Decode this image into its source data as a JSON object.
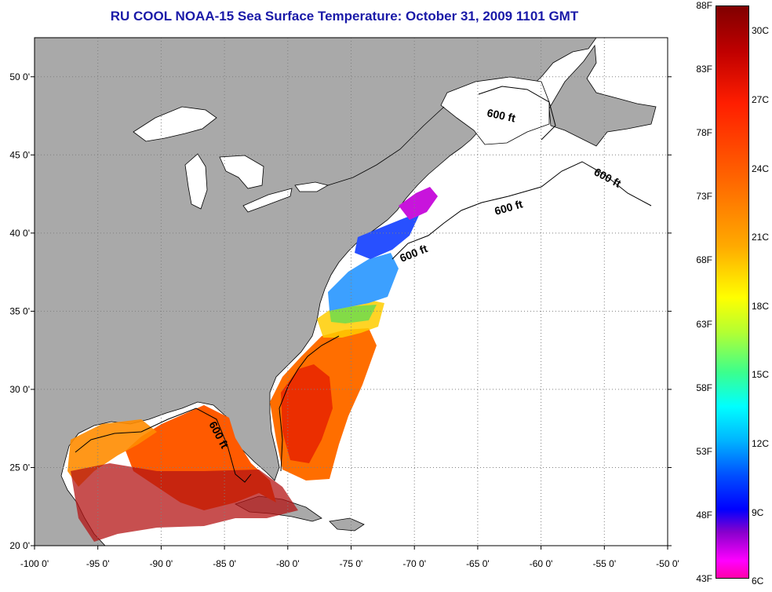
{
  "title": "RU COOL  NOAA-15  Sea Surface Temperature:  October 31, 2009 1101 GMT",
  "axes": {
    "lon_ticks": [
      "-100 0'",
      "-95 0'",
      "-90 0'",
      "-85 0'",
      "-80 0'",
      "-75 0'",
      "-70 0'",
      "-65 0'",
      "-60 0'",
      "-55 0'",
      "-50 0'"
    ],
    "lat_ticks": [
      "50 0'",
      "45 0'",
      "40 0'",
      "35 0'",
      "30 0'",
      "25 0'",
      "20 0'"
    ],
    "lon_range": [
      -100,
      -50
    ],
    "lat_range": [
      20,
      52.5
    ]
  },
  "contour_labels": [
    "600 ft",
    "600 ft",
    "600 ft",
    "600 ft",
    "600 ft"
  ],
  "colorbar": {
    "fahrenheit": [
      "88F",
      "83F",
      "78F",
      "73F",
      "68F",
      "63F",
      "58F",
      "53F",
      "48F",
      "43F"
    ],
    "celsius": [
      "30C",
      "27C",
      "24C",
      "21C",
      "18C",
      "15C",
      "12C",
      "9C",
      "6C"
    ]
  },
  "colors": {
    "title": "#1a1aa8",
    "land": "#a9a9a9",
    "water": "#ffffff",
    "grid": "#808080"
  }
}
